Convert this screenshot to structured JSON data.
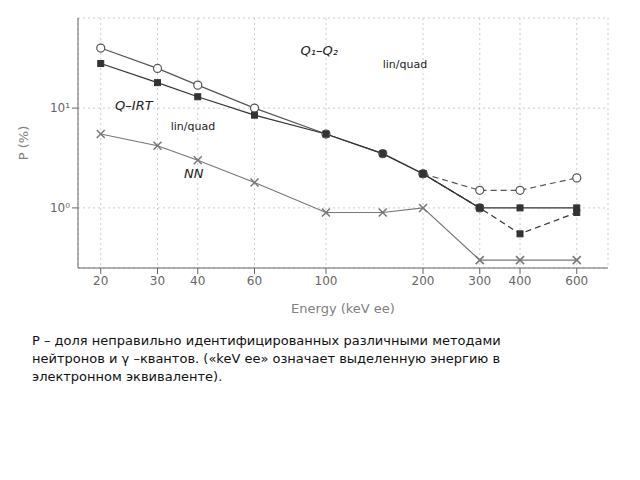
{
  "chart_data": {
    "type": "line",
    "xlabel": "Energy (keV ee)",
    "ylabel": "P (%)",
    "log": true,
    "grid": true,
    "x": [
      20,
      30,
      40,
      60,
      100,
      150,
      200,
      300,
      400,
      600
    ],
    "xlim": [
      17,
      750
    ],
    "xticks": [
      20,
      30,
      40,
      60,
      100,
      200,
      300,
      400,
      600
    ],
    "ylim": [
      0.25,
      80
    ],
    "yticks": [
      {
        "value": 1,
        "label": "10⁰"
      },
      {
        "value": 10,
        "label": "10¹"
      }
    ],
    "series": [
      {
        "color": "#555555",
        "line_style": "solid",
        "marker": "circle",
        "values": [
          40,
          25,
          17,
          10,
          5.5,
          3.5,
          2.2,
          1.0,
          null,
          null
        ]
      },
      {
        "color": "#555555",
        "line_style": "dashed",
        "marker": "circle",
        "values": [
          null,
          null,
          null,
          null,
          null,
          null,
          2.2,
          1.5,
          1.5,
          2.0
        ]
      },
      {
        "color": "#333333",
        "line_style": "solid",
        "marker": "square",
        "values": [
          28,
          18,
          13,
          8.5,
          5.5,
          3.5,
          2.2,
          1.0,
          1.0,
          1.0
        ]
      },
      {
        "color": "#333333",
        "line_style": "dashed",
        "marker": "square",
        "values": [
          null,
          null,
          null,
          null,
          null,
          null,
          2.2,
          1.0,
          0.55,
          0.9
        ]
      },
      {
        "color": "#777777",
        "line_style": "solid",
        "marker": "cross",
        "values": [
          5.5,
          4.2,
          3.0,
          1.8,
          0.9,
          0.9,
          1.0,
          0.3,
          0.3,
          0.3
        ]
      }
    ],
    "annotations": [
      "Q₁–Q₂",
      "lin/quad",
      "Q–IRT",
      "lin/quad",
      "NN"
    ],
    "caption": "Р – доля неправильно идентифицированных различными методами\nнейтронов и γ –квантов. («keV ee» означает выделенную энергию в\nэлектронном эквиваленте)."
  }
}
